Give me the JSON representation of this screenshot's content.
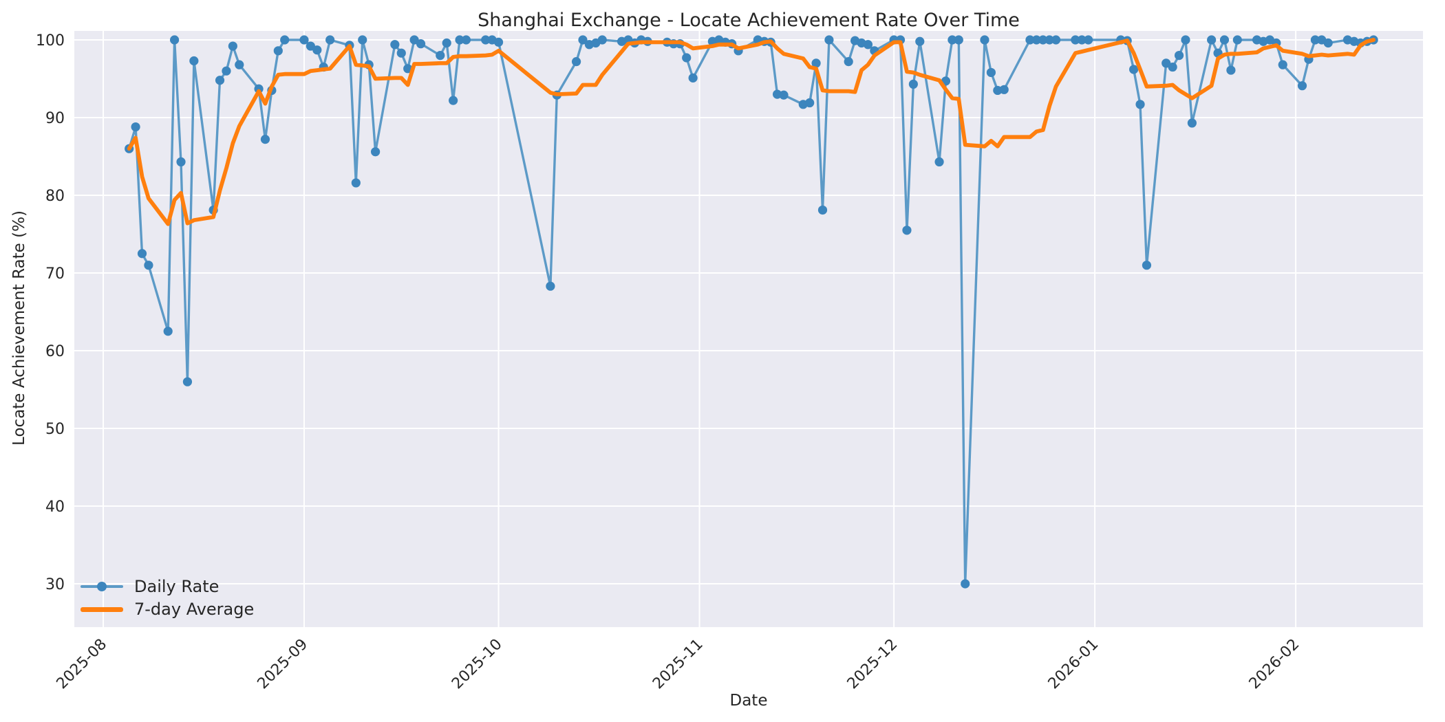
{
  "title": "Shanghai Exchange - Locate Achievement Rate Over Time",
  "xlabel": "Date",
  "ylabel": "Locate Achievement Rate (%)",
  "legend": {
    "daily_label": "Daily Rate",
    "avg_label": "7-day Average"
  },
  "colors": {
    "axes_background": "#eaeaf2",
    "grid": "#ffffff",
    "daily_line": "#5c9ac7",
    "daily_marker": "#3c85bd",
    "avg_line": "#ff7f0e",
    "text": "#262626"
  },
  "chart_data": {
    "type": "line",
    "title": "Shanghai Exchange - Locate Achievement Rate Over Time",
    "xlabel": "Date",
    "ylabel": "Locate Achievement Rate (%)",
    "x_tick_labels": [
      "2025-08",
      "2025-09",
      "2025-10",
      "2025-11",
      "2025-12",
      "2026-01",
      "2026-02"
    ],
    "y_ticks": [
      30,
      40,
      50,
      60,
      70,
      80,
      90,
      100
    ],
    "ylim": [
      24.5,
      101.2
    ],
    "grid": true,
    "legend_position": "lower left",
    "dates": [
      "2025-08-05",
      "2025-08-06",
      "2025-08-07",
      "2025-08-08",
      "2025-08-11",
      "2025-08-12",
      "2025-08-13",
      "2025-08-14",
      "2025-08-15",
      "2025-08-18",
      "2025-08-19",
      "2025-08-20",
      "2025-08-21",
      "2025-08-22",
      "2025-08-25",
      "2025-08-26",
      "2025-08-27",
      "2025-08-28",
      "2025-08-29",
      "2025-09-01",
      "2025-09-02",
      "2025-09-03",
      "2025-09-04",
      "2025-09-05",
      "2025-09-08",
      "2025-09-09",
      "2025-09-10",
      "2025-09-11",
      "2025-09-12",
      "2025-09-15",
      "2025-09-16",
      "2025-09-17",
      "2025-09-18",
      "2025-09-19",
      "2025-09-22",
      "2025-09-23",
      "2025-09-24",
      "2025-09-25",
      "2025-09-26",
      "2025-09-29",
      "2025-09-30",
      "2025-10-01",
      "2025-10-09",
      "2025-10-10",
      "2025-10-13",
      "2025-10-14",
      "2025-10-15",
      "2025-10-16",
      "2025-10-17",
      "2025-10-20",
      "2025-10-21",
      "2025-10-22",
      "2025-10-23",
      "2025-10-24",
      "2025-10-27",
      "2025-10-28",
      "2025-10-29",
      "2025-10-30",
      "2025-10-31",
      "2025-11-03",
      "2025-11-04",
      "2025-11-05",
      "2025-11-06",
      "2025-11-07",
      "2025-11-10",
      "2025-11-11",
      "2025-11-12",
      "2025-11-13",
      "2025-11-14",
      "2025-11-17",
      "2025-11-18",
      "2025-11-19",
      "2025-11-20",
      "2025-11-21",
      "2025-11-24",
      "2025-11-25",
      "2025-11-26",
      "2025-11-27",
      "2025-11-28",
      "2025-12-01",
      "2025-12-02",
      "2025-12-03",
      "2025-12-04",
      "2025-12-05",
      "2025-12-08",
      "2025-12-09",
      "2025-12-10",
      "2025-12-11",
      "2025-12-12",
      "2025-12-15",
      "2025-12-16",
      "2025-12-17",
      "2025-12-18",
      "2025-12-22",
      "2025-12-23",
      "2025-12-24",
      "2025-12-25",
      "2025-12-26",
      "2025-12-29",
      "2025-12-30",
      "2025-12-31",
      "2026-01-05",
      "2026-01-06",
      "2026-01-07",
      "2026-01-08",
      "2026-01-09",
      "2026-01-12",
      "2026-01-13",
      "2026-01-14",
      "2026-01-15",
      "2026-01-16",
      "2026-01-19",
      "2026-01-20",
      "2026-01-21",
      "2026-01-22",
      "2026-01-23",
      "2026-01-26",
      "2026-01-27",
      "2026-01-28",
      "2026-01-29",
      "2026-01-30",
      "2026-02-02",
      "2026-02-03",
      "2026-02-04",
      "2026-02-05",
      "2026-02-06",
      "2026-02-09",
      "2026-02-10",
      "2026-02-11",
      "2026-02-12",
      "2026-02-13"
    ],
    "series": [
      {
        "name": "Daily Rate",
        "values": [
          86.0,
          88.8,
          72.5,
          71.0,
          62.5,
          100,
          84.3,
          56.0,
          97.3,
          78.1,
          94.8,
          96.0,
          99.2,
          96.8,
          93.7,
          87.2,
          93.5,
          98.6,
          100,
          100,
          99.2,
          98.7,
          96.5,
          100,
          99.3,
          81.6,
          100,
          96.8,
          85.6,
          99.4,
          98.3,
          96.3,
          100,
          99.5,
          98.0,
          99.6,
          92.2,
          100,
          100,
          100,
          100,
          99.7,
          68.3,
          92.9,
          97.2,
          100,
          99.4,
          99.6,
          100,
          99.8,
          100,
          99.6,
          100,
          99.8,
          99.7,
          99.5,
          99.5,
          97.7,
          95.1,
          99.8,
          100,
          99.7,
          99.5,
          98.6,
          100,
          99.8,
          99.7,
          93.0,
          92.9,
          91.7,
          91.9,
          97.0,
          78.1,
          100,
          97.2,
          99.9,
          99.6,
          99.4,
          98.6,
          100,
          100,
          75.5,
          94.3,
          99.8,
          84.3,
          94.7,
          100,
          100,
          30.0,
          100,
          95.8,
          93.5,
          93.6,
          100,
          100,
          100,
          100,
          100,
          100,
          100,
          100,
          100,
          99.9,
          96.2,
          91.7,
          71.0,
          97.0,
          96.5,
          98.0,
          100,
          89.3,
          100,
          98.3,
          100,
          96.1,
          100,
          100,
          99.8,
          100,
          99.6,
          96.8,
          94.1,
          97.5,
          100,
          100,
          99.6,
          100,
          99.8,
          99.6,
          99.8,
          100
        ]
      },
      {
        "name": "7-day Average",
        "values": [
          86.0,
          87.4,
          82.4,
          79.6,
          76.3,
          79.4,
          80.3,
          76.4,
          76.8,
          77.2,
          80.6,
          83.5,
          86.7,
          88.9,
          93.4,
          91.8,
          94.0,
          95.5,
          95.6,
          95.6,
          96.0,
          96.1,
          96.2,
          96.3,
          99.2,
          96.8,
          96.7,
          96.6,
          95.0,
          95.1,
          95.1,
          94.2,
          96.9,
          96.9,
          97.0,
          97.0,
          97.8,
          97.9,
          97.9,
          98.0,
          98.1,
          98.6,
          93.2,
          93.0,
          93.1,
          94.2,
          94.2,
          94.2,
          95.5,
          98.5,
          99.5,
          99.6,
          99.7,
          99.7,
          99.7,
          99.7,
          99.7,
          99.4,
          98.9,
          99.2,
          99.4,
          99.4,
          99.4,
          98.9,
          99.4,
          99.7,
          99.8,
          98.9,
          98.2,
          97.6,
          96.5,
          96.3,
          93.5,
          93.4,
          93.4,
          93.3,
          96.1,
          96.8,
          98.0,
          99.7,
          99.7,
          95.9,
          95.8,
          95.5,
          94.8,
          93.6,
          92.5,
          92.4,
          86.5,
          86.3,
          87.0,
          86.3,
          87.5,
          87.5,
          88.2,
          88.4,
          91.5,
          94.0,
          98.3,
          98.5,
          98.7,
          99.7,
          99.9,
          98.3,
          96.2,
          94.0,
          94.1,
          94.2,
          93.5,
          93.0,
          92.5,
          94.1,
          97.6,
          98.1,
          98.2,
          98.2,
          98.4,
          98.9,
          99.1,
          99.3,
          98.6,
          98.2,
          97.9,
          98.0,
          98.1,
          98.0,
          98.2,
          98.1,
          99.3,
          99.8,
          100.0
        ]
      }
    ]
  }
}
